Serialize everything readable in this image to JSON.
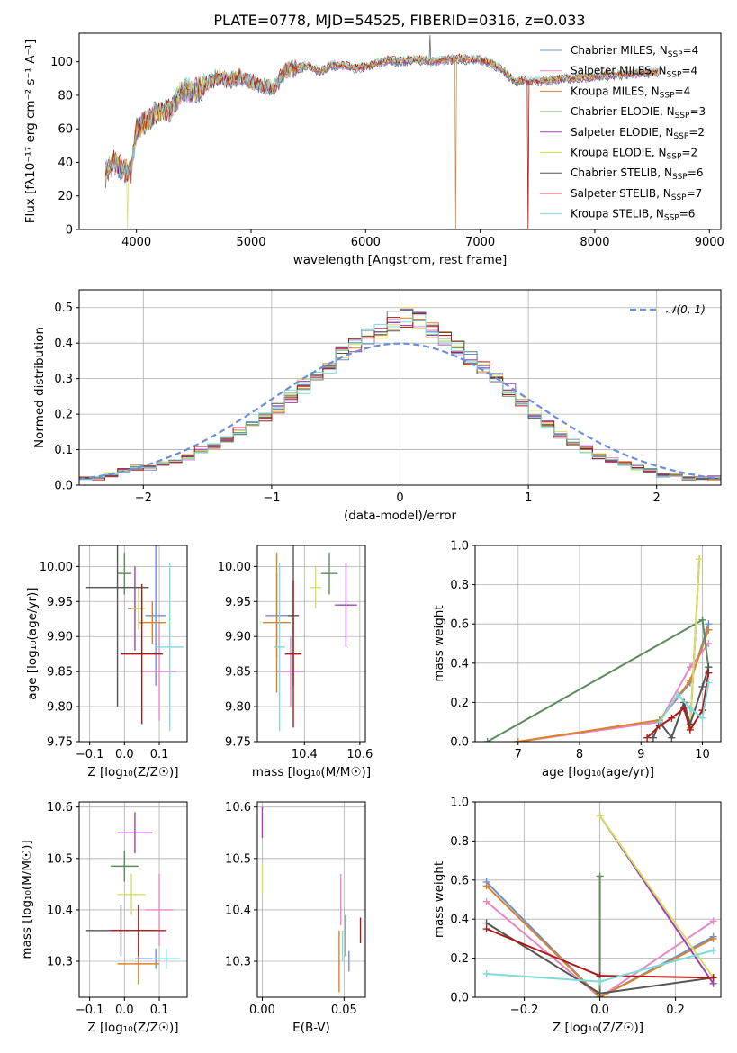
{
  "title": "PLATE=0778, MJD=54525, FIBERID=0316, z=0.033",
  "models": [
    {
      "name": "Chabrier MILES",
      "nssp": "4",
      "color": "#6b8fd6"
    },
    {
      "name": "Salpeter MILES",
      "nssp": "4",
      "color": "#e887c4"
    },
    {
      "name": "Kroupa MILES",
      "nssp": "4",
      "color": "#d9832a"
    },
    {
      "name": "Chabrier ELODIE",
      "nssp": "3",
      "color": "#5c8a5c"
    },
    {
      "name": "Salpeter ELODIE",
      "nssp": "2",
      "color": "#a040b8"
    },
    {
      "name": "Kroupa ELODIE",
      "nssp": "2",
      "color": "#d6e05e"
    },
    {
      "name": "Chabrier STELIB",
      "nssp": "6",
      "color": "#555555"
    },
    {
      "name": "Salpeter STELIB",
      "nssp": "7",
      "color": "#b01818"
    },
    {
      "name": "Kroupa STELIB",
      "nssp": "6",
      "color": "#7fdada"
    }
  ],
  "chart_data": [
    {
      "type": "line",
      "xlabel": "wavelength [Angstrom, rest frame]",
      "ylabel": "Flux [fλ10⁻¹⁷ erg cm⁻² s⁻¹ A⁻¹]",
      "xlim": [
        3500,
        9100
      ],
      "ylim": [
        0,
        117
      ],
      "xticks": [
        4000,
        5000,
        6000,
        7000,
        8000,
        9000
      ],
      "yticks": [
        0,
        20,
        40,
        60,
        80,
        100
      ],
      "legend": "right",
      "spectrum_envelope": {
        "x": [
          3730,
          3800,
          3900,
          3950,
          4000,
          4100,
          4200,
          4300,
          4400,
          4500,
          4600,
          4700,
          4800,
          4900,
          5000,
          5100,
          5200,
          5300,
          5400,
          5500,
          5600,
          5700,
          5800,
          5900,
          6000,
          6100,
          6200,
          6300,
          6400,
          6500,
          6600,
          6700,
          6800,
          6900,
          7000,
          7100,
          7200,
          7300,
          7400
        ],
        "y": [
          33,
          40,
          35,
          33,
          60,
          66,
          70,
          71,
          84,
          82,
          86,
          91,
          89,
          91,
          88,
          86,
          84,
          95,
          96,
          98,
          94,
          98,
          98,
          96,
          97,
          99,
          101,
          100,
          101,
          101,
          100,
          101,
          102,
          101,
          101,
          99,
          95,
          88,
          89
        ]
      },
      "notes": [
        "sharp drop to 0 at ~3920",
        "sharp drop to 0 at ~6780",
        "sharp drop to 0 at ~7420"
      ]
    },
    {
      "type": "histogram",
      "xlabel": "(data-model)/error",
      "ylabel": "Normed distribution",
      "xlim": [
        -2.5,
        2.5
      ],
      "ylim": [
        0,
        0.55
      ],
      "xticks": [
        -2,
        -1,
        0,
        1,
        2
      ],
      "yticks": [
        0.0,
        0.1,
        0.2,
        0.3,
        0.4,
        0.5
      ],
      "reference_curve": "N(0,1)",
      "legend_label": "𝒩(0, 1)",
      "legend": "top-right",
      "bin_width": 0.1,
      "bin_edges_start": -2.5,
      "mean_values": [
        0.02,
        0.02,
        0.03,
        0.04,
        0.05,
        0.05,
        0.06,
        0.07,
        0.08,
        0.1,
        0.11,
        0.13,
        0.15,
        0.17,
        0.19,
        0.22,
        0.25,
        0.28,
        0.31,
        0.34,
        0.37,
        0.4,
        0.42,
        0.44,
        0.46,
        0.47,
        0.46,
        0.44,
        0.42,
        0.39,
        0.36,
        0.33,
        0.3,
        0.27,
        0.23,
        0.2,
        0.17,
        0.14,
        0.12,
        0.1,
        0.08,
        0.07,
        0.06,
        0.05,
        0.04,
        0.03,
        0.03,
        0.02,
        0.02,
        0.02
      ]
    },
    {
      "type": "errorbar",
      "xlabel": "Z [log₁₀(Z/Z☉)]",
      "ylabel": "age  [log₁₀(age/yr)]",
      "xlim": [
        -0.13,
        0.18
      ],
      "ylim": [
        9.75,
        10.03
      ],
      "xticks": [
        -0.1,
        0.0,
        0.1
      ],
      "yticks": [
        9.75,
        9.8,
        9.85,
        9.9,
        9.95,
        10.0
      ],
      "points": [
        {
          "model": 0,
          "x": 0.09,
          "y": 9.93,
          "xerr": 0.03,
          "yerr": 0.1
        },
        {
          "model": 1,
          "x": 0.1,
          "y": 9.85,
          "xerr": 0.05,
          "yerr": 0.07
        },
        {
          "model": 2,
          "x": 0.08,
          "y": 9.92,
          "xerr": 0.04,
          "yerr": 0.03
        },
        {
          "model": 3,
          "x": 0.0,
          "y": 9.99,
          "xerr": 0.02,
          "yerr": 0.03
        },
        {
          "model": 4,
          "x": 0.03,
          "y": 9.94,
          "xerr": 0.02,
          "yerr": 0.06
        },
        {
          "model": 5,
          "x": 0.04,
          "y": 9.94,
          "xerr": 0.02,
          "yerr": 0.03
        },
        {
          "model": 6,
          "x": -0.02,
          "y": 9.97,
          "xerr": 0.09,
          "yerr": 0.17
        },
        {
          "model": 7,
          "x": 0.05,
          "y": 9.875,
          "xerr": 0.06,
          "yerr": 0.1
        },
        {
          "model": 8,
          "x": 0.13,
          "y": 9.885,
          "xerr": 0.04,
          "yerr": 0.12
        }
      ]
    },
    {
      "type": "errorbar",
      "xlabel": "mass [log₁₀(M/M☉)]",
      "ylabel": "",
      "xlim": [
        10.23,
        10.62
      ],
      "ylim": [
        9.75,
        10.03
      ],
      "xticks": [
        10.4,
        10.6
      ],
      "yticks": [
        9.75,
        9.8,
        9.85,
        9.9,
        9.95,
        10.0
      ],
      "points": [
        {
          "model": 0,
          "x": 10.3,
          "y": 9.93,
          "xerr": 0.04,
          "yerr": 0.06
        },
        {
          "model": 1,
          "x": 10.35,
          "y": 9.85,
          "xerr": 0.05,
          "yerr": 0.05
        },
        {
          "model": 2,
          "x": 10.3,
          "y": 9.92,
          "xerr": 0.05,
          "yerr": 0.1
        },
        {
          "model": 3,
          "x": 10.49,
          "y": 9.99,
          "xerr": 0.03,
          "yerr": 0.03
        },
        {
          "model": 4,
          "x": 10.55,
          "y": 9.945,
          "xerr": 0.04,
          "yerr": 0.06
        },
        {
          "model": 5,
          "x": 10.44,
          "y": 9.97,
          "xerr": 0.02,
          "yerr": 0.03
        },
        {
          "model": 6,
          "x": 10.36,
          "y": 9.93,
          "xerr": 0.02,
          "yerr": 0.1
        },
        {
          "model": 7,
          "x": 10.36,
          "y": 9.875,
          "xerr": 0.03,
          "yerr": 0.105
        },
        {
          "model": 8,
          "x": 10.31,
          "y": 9.885,
          "xerr": 0.02,
          "yerr": 0.12
        }
      ]
    },
    {
      "type": "line",
      "xlabel": "age  [log₁₀(age/yr)]",
      "ylabel": "mass weight",
      "xlim": [
        6.3,
        10.3
      ],
      "ylim": [
        0,
        1.0
      ],
      "xticks": [
        7,
        8,
        9,
        10
      ],
      "yticks": [
        0.0,
        0.2,
        0.4,
        0.6,
        0.8,
        1.0
      ],
      "series": [
        {
          "model": 0,
          "x": [
            7.0,
            9.3,
            9.8,
            10.1
          ],
          "y": [
            0.0,
            0.11,
            0.3,
            0.6
          ]
        },
        {
          "model": 1,
          "x": [
            7.0,
            9.3,
            9.8,
            10.1
          ],
          "y": [
            0.0,
            0.1,
            0.38,
            0.5
          ]
        },
        {
          "model": 2,
          "x": [
            7.0,
            9.3,
            9.8,
            10.1
          ],
          "y": [
            0.0,
            0.11,
            0.31,
            0.57
          ]
        },
        {
          "model": 3,
          "x": [
            6.5,
            10.0,
            10.1
          ],
          "y": [
            0.0,
            0.62,
            0.38
          ]
        },
        {
          "model": 4,
          "x": [
            9.8,
            9.95
          ],
          "y": [
            0.07,
            0.93
          ]
        },
        {
          "model": 5,
          "x": [
            9.8,
            9.95
          ],
          "y": [
            0.07,
            0.93
          ]
        },
        {
          "model": 6,
          "x": [
            9.2,
            9.3,
            9.5,
            9.7,
            9.8,
            10.0,
            10.1
          ],
          "y": [
            0.02,
            0.1,
            0.02,
            0.2,
            0.09,
            0.28,
            0.38
          ]
        },
        {
          "model": 7,
          "x": [
            9.1,
            9.3,
            9.5,
            9.7,
            9.8,
            10.0,
            10.1
          ],
          "y": [
            0.02,
            0.08,
            0.12,
            0.17,
            0.06,
            0.16,
            0.35
          ]
        },
        {
          "model": 8,
          "x": [
            9.3,
            9.6,
            9.8,
            10.0,
            10.1
          ],
          "y": [
            0.1,
            0.24,
            0.17,
            0.12,
            0.3
          ]
        }
      ]
    },
    {
      "type": "errorbar",
      "xlabel": "Z [log₁₀(Z/Z☉)]",
      "ylabel": "mass [log₁₀(M/M☉)]",
      "xlim": [
        -0.13,
        0.18
      ],
      "ylim": [
        10.23,
        10.61
      ],
      "xticks": [
        -0.1,
        0.0,
        0.1
      ],
      "yticks": [
        10.3,
        10.4,
        10.5,
        10.6
      ],
      "points": [
        {
          "model": 0,
          "x": 0.09,
          "y": 10.305,
          "xerr": 0.06,
          "yerr": 0.02
        },
        {
          "model": 1,
          "x": 0.1,
          "y": 10.4,
          "xerr": 0.04,
          "yerr": 0.07
        },
        {
          "model": 2,
          "x": 0.04,
          "y": 10.295,
          "xerr": 0.06,
          "yerr": 0.04
        },
        {
          "model": 3,
          "x": 0.0,
          "y": 10.485,
          "xerr": 0.04,
          "yerr": 0.03
        },
        {
          "model": 4,
          "x": 0.03,
          "y": 10.55,
          "xerr": 0.05,
          "yerr": 0.04
        },
        {
          "model": 5,
          "x": 0.02,
          "y": 10.43,
          "xerr": 0.04,
          "yerr": 0.04
        },
        {
          "model": 6,
          "x": -0.01,
          "y": 10.36,
          "xerr": 0.1,
          "yerr": 0.05
        },
        {
          "model": 7,
          "x": 0.04,
          "y": 10.36,
          "xerr": 0.08,
          "yerr": 0.05
        },
        {
          "model": 8,
          "x": 0.12,
          "y": 10.305,
          "xerr": 0.04,
          "yerr": 0.02
        }
      ]
    },
    {
      "type": "errorbar",
      "xlabel": "E(B-V)",
      "ylabel": "",
      "xlim": [
        -0.003,
        0.063
      ],
      "ylim": [
        10.23,
        10.61
      ],
      "xticks": [
        0.0,
        0.05
      ],
      "yticks": [
        10.3,
        10.4,
        10.5,
        10.6
      ],
      "points": [
        {
          "model": 0,
          "x": 0.053,
          "y": 10.3,
          "xerr": 0,
          "yerr": 0.02
        },
        {
          "model": 1,
          "x": 0.048,
          "y": 10.42,
          "xerr": 0,
          "yerr": 0.05
        },
        {
          "model": 2,
          "x": 0.047,
          "y": 10.3,
          "xerr": 0,
          "yerr": 0.06
        },
        {
          "model": 3,
          "x": 0.051,
          "y": 10.35,
          "xerr": 0,
          "yerr": 0.04
        },
        {
          "model": 4,
          "x": 0.0,
          "y": 10.57,
          "xerr": 0,
          "yerr": 0.03
        },
        {
          "model": 5,
          "x": 0.0,
          "y": 10.46,
          "xerr": 0,
          "yerr": 0.03
        },
        {
          "model": 6,
          "x": 0.051,
          "y": 10.35,
          "xerr": 0,
          "yerr": 0.04
        },
        {
          "model": 7,
          "x": 0.06,
          "y": 10.36,
          "xerr": 0,
          "yerr": 0.025
        },
        {
          "model": 8,
          "x": 0.049,
          "y": 10.33,
          "xerr": 0,
          "yerr": 0.03
        }
      ]
    },
    {
      "type": "line",
      "xlabel": "Z [log₁₀(Z/Z☉)]",
      "ylabel": "mass weight",
      "xlim": [
        -0.33,
        0.32
      ],
      "ylim": [
        0,
        1.0
      ],
      "xticks": [
        -0.2,
        0.0,
        0.2
      ],
      "yticks": [
        0.0,
        0.2,
        0.4,
        0.6,
        0.8,
        1.0
      ],
      "series": [
        {
          "model": 0,
          "x": [
            -0.3,
            0.0,
            0.3
          ],
          "y": [
            0.59,
            0.0,
            0.31
          ]
        },
        {
          "model": 1,
          "x": [
            -0.3,
            0.0,
            0.3
          ],
          "y": [
            0.49,
            0.0,
            0.39
          ]
        },
        {
          "model": 2,
          "x": [
            -0.3,
            0.0,
            0.3
          ],
          "y": [
            0.57,
            0.0,
            0.3
          ]
        },
        {
          "model": 3,
          "x": [
            0.0,
            0.0
          ],
          "y": [
            0.62,
            0.0
          ]
        },
        {
          "model": 4,
          "x": [
            0.0,
            0.3
          ],
          "y": [
            0.93,
            0.07
          ]
        },
        {
          "model": 5,
          "x": [
            0.0,
            0.3
          ],
          "y": [
            0.93,
            0.1
          ]
        },
        {
          "model": 6,
          "x": [
            -0.3,
            0.0,
            0.3
          ],
          "y": [
            0.38,
            0.02,
            0.1
          ]
        },
        {
          "model": 7,
          "x": [
            -0.3,
            0.0,
            0.3
          ],
          "y": [
            0.35,
            0.11,
            0.1
          ]
        },
        {
          "model": 8,
          "x": [
            -0.3,
            0.0,
            0.3
          ],
          "y": [
            0.12,
            0.08,
            0.24
          ]
        }
      ]
    }
  ]
}
